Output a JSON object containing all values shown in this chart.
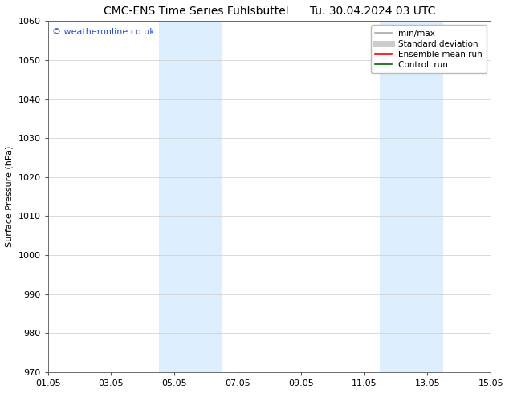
{
  "title_left": "CMC-ENS Time Series Fuhlsbüttel",
  "title_right": "Tu. 30.04.2024 03 UTC",
  "ylabel": "Surface Pressure (hPa)",
  "ylim": [
    970,
    1060
  ],
  "yticks": [
    970,
    980,
    990,
    1000,
    1010,
    1020,
    1030,
    1040,
    1050,
    1060
  ],
  "xtick_labels": [
    "01.05",
    "03.05",
    "05.05",
    "07.05",
    "09.05",
    "11.05",
    "13.05",
    "15.05"
  ],
  "xtick_positions": [
    0,
    2,
    4,
    6,
    8,
    10,
    12,
    14
  ],
  "xlim": [
    0,
    14
  ],
  "shaded_bands": [
    {
      "x_start": 3.5,
      "x_end": 5.5
    },
    {
      "x_start": 10.5,
      "x_end": 12.5
    }
  ],
  "shaded_color": "#ddeeff",
  "watermark_text": "© weatheronline.co.uk",
  "watermark_color": "#2255cc",
  "legend_entries": [
    {
      "label": "min/max",
      "color": "#aaaaaa",
      "lw": 1.2
    },
    {
      "label": "Standard deviation",
      "color": "#cccccc",
      "lw": 5
    },
    {
      "label": "Ensemble mean run",
      "color": "#ff0000",
      "lw": 1.2
    },
    {
      "label": "Controll run",
      "color": "#006600",
      "lw": 1.2
    }
  ],
  "background_color": "#ffffff",
  "grid_color": "#cccccc",
  "title_fontsize": 10,
  "axis_label_fontsize": 8,
  "tick_fontsize": 8,
  "legend_fontsize": 7.5,
  "watermark_fontsize": 8
}
